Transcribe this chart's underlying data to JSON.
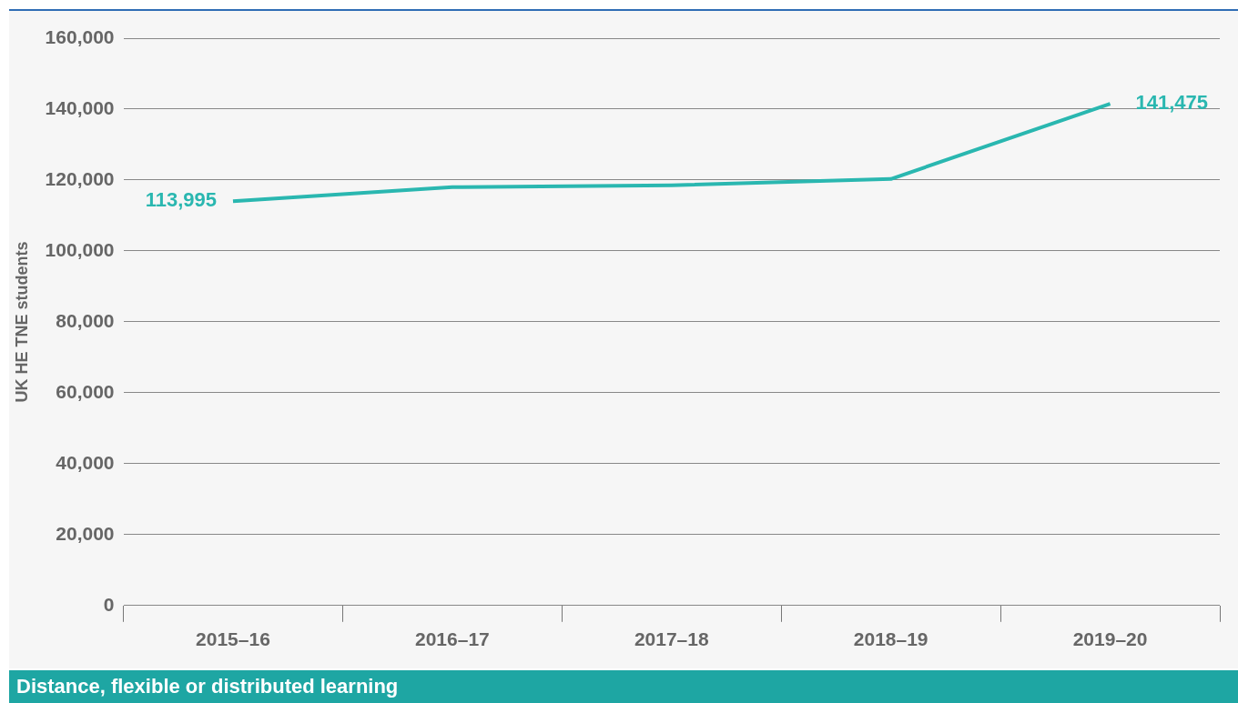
{
  "chart_data": {
    "type": "line",
    "ylabel": "UK HE TNE students",
    "categories": [
      "2015–16",
      "2016–17",
      "2017–18",
      "2018–19",
      "2019–20"
    ],
    "series": [
      {
        "color": "#2ab7b0",
        "values": [
          113995,
          118000,
          118500,
          120300,
          141475
        ],
        "value_labels": [
          "113,995",
          null,
          null,
          null,
          "141,475"
        ]
      }
    ],
    "ylim": [
      0,
      160000
    ],
    "yticks": [
      {
        "value": 0,
        "label": "0"
      },
      {
        "value": 20000,
        "label": "20,000"
      },
      {
        "value": 40000,
        "label": "40,000"
      },
      {
        "value": 60000,
        "label": "60,000"
      },
      {
        "value": 80000,
        "label": "80,000"
      },
      {
        "value": 100000,
        "label": "100,000"
      },
      {
        "value": 120000,
        "label": "120,000"
      },
      {
        "value": 140000,
        "label": "140,000"
      },
      {
        "value": 160000,
        "label": "160,000"
      }
    ],
    "grid": "y",
    "legend": false,
    "marker": "none",
    "line_style": "solid",
    "annotations": [
      "Distance, flexible or distributed learning"
    ]
  }
}
